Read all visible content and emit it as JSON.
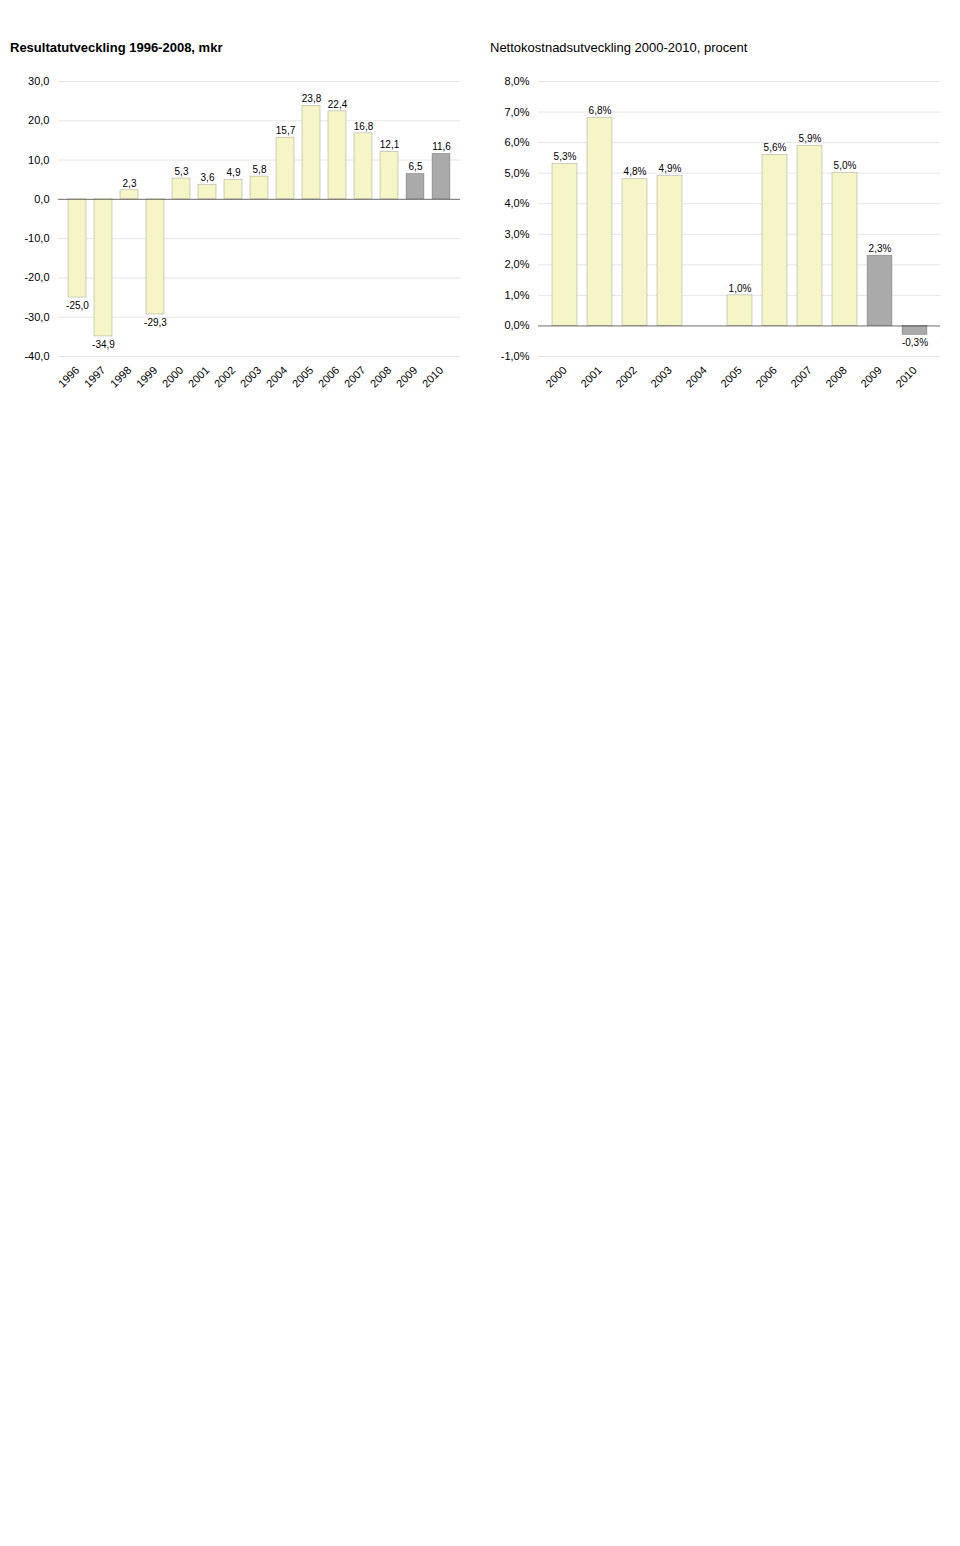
{
  "chart_data": [
    {
      "type": "bar",
      "title": "Resultatutveckling 1996-2008, mkr",
      "categories": [
        "1996",
        "1997",
        "1998",
        "1999",
        "2000",
        "2001",
        "2002",
        "2003",
        "2004",
        "2005",
        "2006",
        "2007",
        "2008",
        "2009",
        "2010"
      ],
      "values": [
        -25.0,
        -34.9,
        2.3,
        -29.3,
        5.3,
        3.6,
        4.9,
        5.8,
        15.7,
        23.8,
        22.4,
        16.8,
        12.1,
        6.5,
        11.6
      ],
      "value_labels": [
        "-25,0",
        "-34,9",
        "2,3",
        "-29,3",
        "5,3",
        "3,6",
        "4,9",
        "5,8",
        "15,7",
        "23,8",
        "22,4",
        "16,8",
        "12,1",
        "6,5",
        "11,6"
      ],
      "colors": [
        "#f5f5c8",
        "#f5f5c8",
        "#f5f5c8",
        "#f5f5c8",
        "#f5f5c8",
        "#f5f5c8",
        "#f5f5c8",
        "#f5f5c8",
        "#f5f5c8",
        "#f5f5c8",
        "#f5f5c8",
        "#f5f5c8",
        "#f5f5c8",
        "#aaaaaa",
        "#aaaaaa"
      ],
      "ylim": [
        -40,
        30
      ],
      "yticks": [
        {
          "value": -40,
          "label": "-40,0"
        },
        {
          "value": -30,
          "label": "-30,0"
        },
        {
          "value": -20,
          "label": "-20,0"
        },
        {
          "value": -10,
          "label": "-10,0"
        },
        {
          "value": 0,
          "label": "0,0"
        },
        {
          "value": 10,
          "label": "10,0"
        },
        {
          "value": 20,
          "label": "20,0"
        },
        {
          "value": 30,
          "label": "30,0"
        }
      ],
      "grid": true,
      "data_labels": true
    },
    {
      "type": "bar",
      "title": "Nettokostnadsutveckling 2000-2010, procent",
      "categories": [
        "2000",
        "2001",
        "2002",
        "2003",
        "2004",
        "2005",
        "2006",
        "2007",
        "2008",
        "2009",
        "2010"
      ],
      "values": [
        5.3,
        6.8,
        4.8,
        4.9,
        0.0,
        1.0,
        5.6,
        5.9,
        5.0,
        2.3,
        -0.3
      ],
      "value_labels": [
        "5,3%",
        "6,8%",
        "4,8%",
        "4,9%",
        null,
        "1,0%",
        "5,6%",
        "5,9%",
        "5,0%",
        "2,3%",
        "-0,3%"
      ],
      "colors": [
        "#f5f5c8",
        "#f5f5c8",
        "#f5f5c8",
        "#f5f5c8",
        "#f5f5c8",
        "#f5f5c8",
        "#f5f5c8",
        "#f5f5c8",
        "#f5f5c8",
        "#aaaaaa",
        "#aaaaaa"
      ],
      "ylim": [
        -1.0,
        8.0
      ],
      "yticks": [
        {
          "value": -1.0,
          "label": "-1,0%"
        },
        {
          "value": 0.0,
          "label": "0,0%"
        },
        {
          "value": 1.0,
          "label": "1,0%"
        },
        {
          "value": 2.0,
          "label": "2,0%"
        },
        {
          "value": 3.0,
          "label": "3,0%"
        },
        {
          "value": 4.0,
          "label": "4,0%"
        },
        {
          "value": 5.0,
          "label": "5,0%"
        },
        {
          "value": 6.0,
          "label": "6,0%"
        },
        {
          "value": 7.0,
          "label": "7,0%"
        },
        {
          "value": 8.0,
          "label": "8,0%"
        }
      ],
      "grid": true,
      "data_labels": true
    }
  ]
}
